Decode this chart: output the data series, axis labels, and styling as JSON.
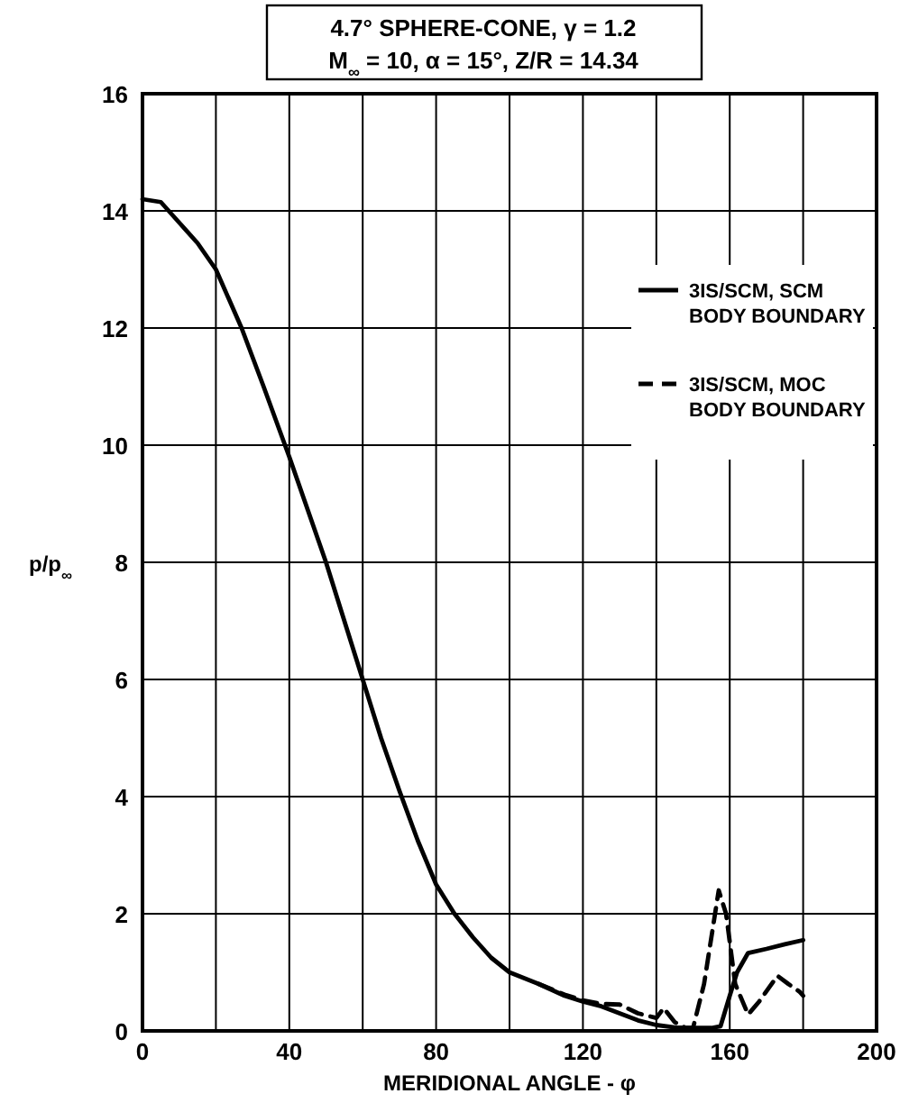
{
  "chart_data": {
    "type": "line",
    "title": "4.7° SPHERE-CONE, γ = 1.2",
    "subtitle": "M$_{∞}$ = 10, α = 15°, Z/R = 14.34",
    "xlabel": "MERIDIONAL ANGLE - φ",
    "ylabel": "p/p$_{∞}$",
    "xlim": [
      0,
      200
    ],
    "ylim": [
      0,
      16
    ],
    "xticks": [
      0,
      {
        "value": 20,
        "label": null
      },
      40,
      {
        "value": 60,
        "label": null
      },
      80,
      {
        "value": 100,
        "label": null
      },
      120,
      {
        "value": 140,
        "label": null
      },
      160,
      {
        "value": 180,
        "label": null
      },
      200
    ],
    "yticks": [
      0,
      2,
      4,
      6,
      8,
      10,
      12,
      14,
      16
    ],
    "grid": true,
    "legend": "top right",
    "series": [
      {
        "name": "3IS/SCM, SCM BODY BOUNDARY",
        "color": "#000000",
        "line_style": "solid",
        "x": [
          0,
          5,
          10,
          15,
          20,
          27,
          33,
          40,
          45,
          50,
          55,
          60,
          65,
          70,
          75,
          80,
          85,
          90,
          95,
          100,
          108,
          115,
          120,
          125,
          130,
          135,
          140,
          145,
          150,
          155,
          157.5,
          160,
          162,
          165,
          170,
          175,
          180
        ],
        "values": [
          14.2,
          14.15,
          13.8,
          13.45,
          13.0,
          12.0,
          11.0,
          9.8,
          8.9,
          8.0,
          7.0,
          6.0,
          5.0,
          4.1,
          3.25,
          2.5,
          2.0,
          1.6,
          1.25,
          1.0,
          0.8,
          0.6,
          0.5,
          0.42,
          0.3,
          0.18,
          0.1,
          0.06,
          0.05,
          0.05,
          0.08,
          0.6,
          1.0,
          1.33,
          1.4,
          1.48,
          1.55
        ]
      },
      {
        "name": "3IS/SCM, MOC BODY BOUNDARY",
        "color": "#000000",
        "line_style": "dashed",
        "x": [
          108,
          115,
          120,
          125,
          130,
          135,
          140,
          142,
          145,
          148,
          150,
          153,
          157,
          159,
          161.5,
          165,
          168,
          173,
          176,
          179,
          180
        ],
        "values": [
          0.8,
          0.62,
          0.52,
          0.46,
          0.45,
          0.3,
          0.22,
          0.39,
          0.15,
          0.05,
          0.05,
          0.8,
          2.4,
          2.0,
          0.8,
          0.28,
          0.5,
          0.94,
          0.8,
          0.67,
          0.6
        ]
      }
    ]
  }
}
